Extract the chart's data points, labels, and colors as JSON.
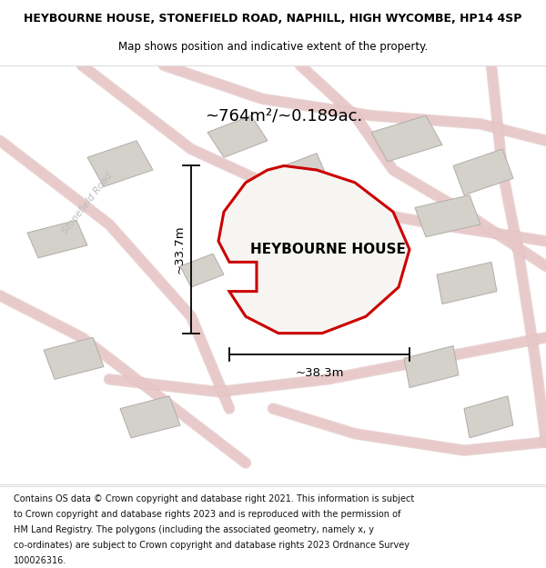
{
  "title_line1": "HEYBOURNE HOUSE, STONEFIELD ROAD, NAPHILL, HIGH WYCOMBE, HP14 4SP",
  "title_line2": "Map shows position and indicative extent of the property.",
  "property_label": "HEYBOURNE HOUSE",
  "area_label": "~764m²/~0.189ac.",
  "dim_horizontal": "~38.3m",
  "dim_vertical": "~33.7m",
  "road_label": "Stonefield Road",
  "footer_lines": [
    "Contains OS data © Crown copyright and database right 2021. This information is subject",
    "to Crown copyright and database rights 2023 and is reproduced with the permission of",
    "HM Land Registry. The polygons (including the associated geometry, namely x, y",
    "co-ordinates) are subject to Crown copyright and database rights 2023 Ordnance Survey",
    "100026316."
  ],
  "map_bg": "#eeebe6",
  "property_fill": "#f7f5f2",
  "property_edge": "#cc0000",
  "building_fill": "#d4d0ca",
  "building_edge": "#b0ada8",
  "road_fill": "#e8c8c8",
  "road_edge": "#d4a8a8",
  "title_color": "#000000",
  "footer_color": "#111111",
  "road_label_color": "#bbbbbb",
  "dim_color": "#000000",
  "title_fontsize": 9.0,
  "subtitle_fontsize": 8.5,
  "area_fontsize": 13,
  "label_fontsize": 11,
  "dim_fontsize": 9.5,
  "footer_fontsize": 7.0,
  "road_label_fontsize": 7.5,
  "road_linewidth": 14,
  "road_linewidth_edge": 18
}
